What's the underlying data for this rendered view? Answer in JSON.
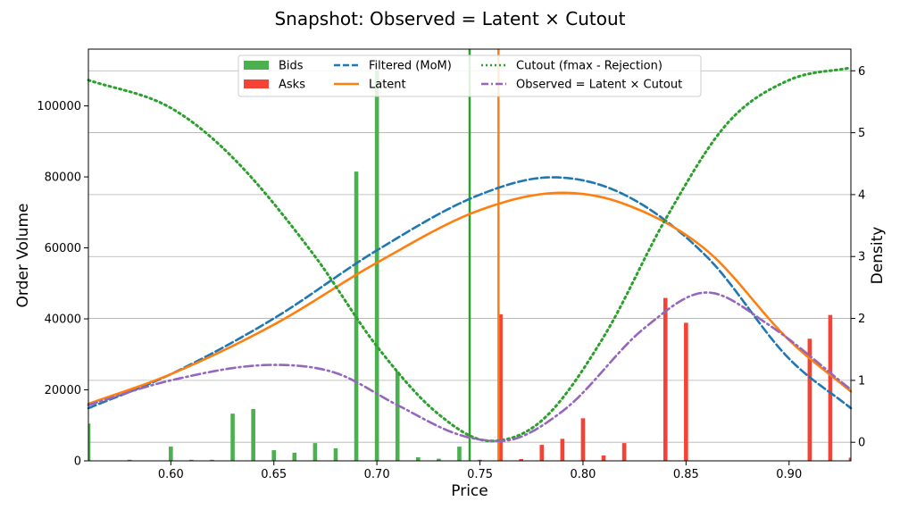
{
  "chart_data": {
    "type": "bar",
    "title": "Snapshot: Observed = Latent × Cutout",
    "xlabel": "Price",
    "ylabel": "Order Volume",
    "y2label": "Density",
    "xlim": [
      0.56,
      0.93
    ],
    "ylim": [
      0,
      116000
    ],
    "y2lim": [
      -0.3,
      6.35
    ],
    "xticks": [
      "0.60",
      "0.65",
      "0.70",
      "0.75",
      "0.80",
      "0.85",
      "0.90"
    ],
    "yticks": [
      "0",
      "20000",
      "40000",
      "60000",
      "80000",
      "100000"
    ],
    "y2ticks": [
      "0",
      "1",
      "2",
      "3",
      "4",
      "5",
      "6"
    ],
    "grid_y2": true,
    "legend_position": "top-center",
    "bar_series": [
      {
        "name": "Bids",
        "color": "#4caf50",
        "x": [
          0.56,
          0.58,
          0.6,
          0.61,
          0.62,
          0.63,
          0.64,
          0.65,
          0.66,
          0.67,
          0.68,
          0.69,
          0.7,
          0.71,
          0.72,
          0.73,
          0.74
        ],
        "values": [
          10500,
          300,
          4000,
          300,
          300,
          13300,
          14600,
          3000,
          2300,
          5000,
          3500,
          81500,
          110000,
          25200,
          1000,
          600,
          4000
        ]
      },
      {
        "name": "Asks",
        "color": "#f44336",
        "x": [
          0.75,
          0.76,
          0.77,
          0.78,
          0.79,
          0.8,
          0.81,
          0.82,
          0.84,
          0.85,
          0.91,
          0.92,
          0.93
        ],
        "values": [
          300,
          41300,
          500,
          4500,
          6200,
          12000,
          1500,
          5000,
          45900,
          38900,
          34400,
          41100,
          900
        ]
      }
    ],
    "vlines": [
      {
        "x": 0.745,
        "color": "#2ca02c"
      },
      {
        "x": 0.759,
        "color": "#ff7f0e"
      }
    ],
    "line_series": [
      {
        "name": "Filtered (MoM)",
        "color": "#1f77b4",
        "style": "dashed",
        "x": [
          0.56,
          0.6,
          0.65,
          0.7,
          0.75,
          0.785,
          0.82,
          0.86,
          0.9,
          0.93
        ],
        "values": [
          0.55,
          1.1,
          2.0,
          3.1,
          4.0,
          4.28,
          4.0,
          3.0,
          1.35,
          0.55
        ]
      },
      {
        "name": "Latent",
        "color": "#ff7f0e",
        "style": "solid",
        "x": [
          0.56,
          0.6,
          0.65,
          0.7,
          0.75,
          0.79,
          0.82,
          0.86,
          0.9,
          0.93
        ],
        "values": [
          0.62,
          1.1,
          1.9,
          2.9,
          3.75,
          4.03,
          3.85,
          3.1,
          1.65,
          0.82
        ]
      },
      {
        "name": "Cutout (fmax - Rejection)",
        "color": "#2ca02c",
        "style": "dotted",
        "x": [
          0.56,
          0.6,
          0.63,
          0.67,
          0.7,
          0.73,
          0.755,
          0.78,
          0.81,
          0.84,
          0.87,
          0.9,
          0.93
        ],
        "values": [
          5.85,
          5.4,
          4.6,
          3.0,
          1.55,
          0.45,
          0.02,
          0.35,
          1.7,
          3.6,
          5.15,
          5.85,
          6.05
        ]
      },
      {
        "name": "Observed = Latent × Cutout",
        "color": "#9467bd",
        "style": "dashdot",
        "x": [
          0.56,
          0.6,
          0.65,
          0.68,
          0.71,
          0.74,
          0.76,
          0.79,
          0.83,
          0.86,
          0.89,
          0.93
        ],
        "values": [
          0.6,
          1.0,
          1.25,
          1.12,
          0.6,
          0.12,
          0.02,
          0.5,
          1.85,
          2.42,
          1.9,
          0.85
        ]
      }
    ]
  }
}
